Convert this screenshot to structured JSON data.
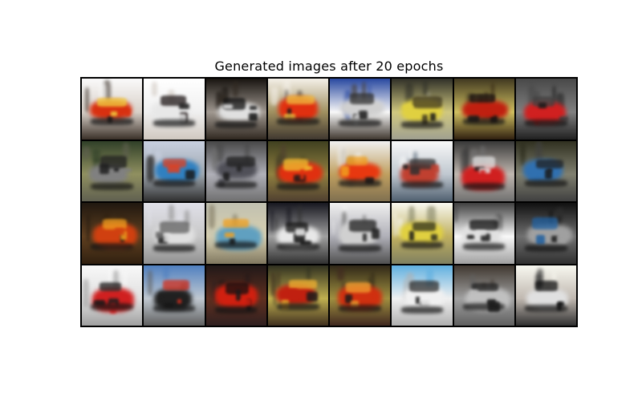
{
  "figure": {
    "title": "Generated images after 20 epochs"
  },
  "grid": {
    "rows": 4,
    "cols": 8,
    "tiles": [
      {
        "bg": [
          "#fafafa",
          "#d8d0c8",
          "#3a3028"
        ],
        "car": "#d83010",
        "accent": "#f0d040"
      },
      {
        "bg": [
          "#ffffff",
          "#f0f0f0",
          "#d0c8c0"
        ],
        "car": "#e8e8e8",
        "accent": "#201818"
      },
      {
        "bg": [
          "#181410",
          "#a09890",
          "#302820"
        ],
        "car": "#e0e0e0",
        "accent": "#101010"
      },
      {
        "bg": [
          "#f4f0e8",
          "#a09060",
          "#403830"
        ],
        "car": "#e03010",
        "accent": "#f0c040"
      },
      {
        "bg": [
          "#2848a0",
          "#f8f8f8",
          "#403830"
        ],
        "car": "#d0d0d0",
        "accent": "#303030"
      },
      {
        "bg": [
          "#303028",
          "#d0c880",
          "#a0a090"
        ],
        "car": "#e0d040",
        "accent": "#403820"
      },
      {
        "bg": [
          "#403820",
          "#d0c060",
          "#302010"
        ],
        "car": "#c02010",
        "accent": "#181010"
      },
      {
        "bg": [
          "#484848",
          "#808080",
          "#202020"
        ],
        "car": "#d02020",
        "accent": "#404040"
      },
      {
        "bg": [
          "#304028",
          "#909060",
          "#606050"
        ],
        "car": "#808080",
        "accent": "#202020"
      },
      {
        "bg": [
          "#c8d0e0",
          "#a0a8b0",
          "#303030"
        ],
        "car": "#3080c0",
        "accent": "#e04020"
      },
      {
        "bg": [
          "#484848",
          "#b0b0b8",
          "#707070"
        ],
        "car": "#505058",
        "accent": "#202020"
      },
      {
        "bg": [
          "#404020",
          "#908040",
          "#504030"
        ],
        "car": "#e03010",
        "accent": "#f0c030"
      },
      {
        "bg": [
          "#f0f0f0",
          "#c0a060",
          "#807050"
        ],
        "car": "#e83810",
        "accent": "#f0a020"
      },
      {
        "bg": [
          "#f8f8f8",
          "#c0c8d0",
          "#506070"
        ],
        "car": "#c04030",
        "accent": "#303030"
      },
      {
        "bg": [
          "#383838",
          "#c0b8b0",
          "#707070"
        ],
        "car": "#d02020",
        "accent": "#e0e0e0"
      },
      {
        "bg": [
          "#303020",
          "#808070",
          "#404040"
        ],
        "car": "#3070b0",
        "accent": "#202020"
      },
      {
        "bg": [
          "#201810",
          "#604020",
          "#302010"
        ],
        "car": "#d04010",
        "accent": "#f0a020"
      },
      {
        "bg": [
          "#e0e0e8",
          "#c8c8c8",
          "#909090"
        ],
        "car": "#e0e0e0",
        "accent": "#606060"
      },
      {
        "bg": [
          "#c0c0b0",
          "#d8d0b0",
          "#807860"
        ],
        "car": "#60a0c0",
        "accent": "#f0a020"
      },
      {
        "bg": [
          "#181820",
          "#a0a0a0",
          "#303030"
        ],
        "car": "#e8e8e8",
        "accent": "#101010"
      },
      {
        "bg": [
          "#f0f0f0",
          "#b0b0b8",
          "#505050"
        ],
        "car": "#d0d0d0",
        "accent": "#202020"
      },
      {
        "bg": [
          "#f8f8f0",
          "#c0b060",
          "#808060"
        ],
        "car": "#e0d040",
        "accent": "#303020"
      },
      {
        "bg": [
          "#404040",
          "#f8f8f8",
          "#a0a0a0"
        ],
        "car": "#e0e0e0",
        "accent": "#101010"
      },
      {
        "bg": [
          "#101010",
          "#707070",
          "#303030"
        ],
        "car": "#a0a0a0",
        "accent": "#2060a0"
      },
      {
        "bg": [
          "#f8f8f8",
          "#e0e0e0",
          "#a0a0a0"
        ],
        "car": "#d02020",
        "accent": "#202020"
      },
      {
        "bg": [
          "#5080c0",
          "#c0c8d0",
          "#606060"
        ],
        "car": "#202020",
        "accent": "#d03020"
      },
      {
        "bg": [
          "#201818",
          "#603020",
          "#302020"
        ],
        "car": "#d02010",
        "accent": "#101010"
      },
      {
        "bg": [
          "#303020",
          "#c0b050",
          "#403020"
        ],
        "car": "#c02010",
        "accent": "#f0b030"
      },
      {
        "bg": [
          "#302818",
          "#a09040",
          "#402820"
        ],
        "car": "#d03010",
        "accent": "#f0a030"
      },
      {
        "bg": [
          "#60b0e0",
          "#f0f0f0",
          "#b0b0b0"
        ],
        "car": "#f0f0f0",
        "accent": "#303030"
      },
      {
        "bg": [
          "#403830",
          "#a0a0a0",
          "#606060"
        ],
        "car": "#c0c0c0",
        "accent": "#202020"
      },
      {
        "bg": [
          "#f8f8f0",
          "#c0b8b0",
          "#303030"
        ],
        "car": "#e0e0e0",
        "accent": "#101010"
      }
    ]
  }
}
